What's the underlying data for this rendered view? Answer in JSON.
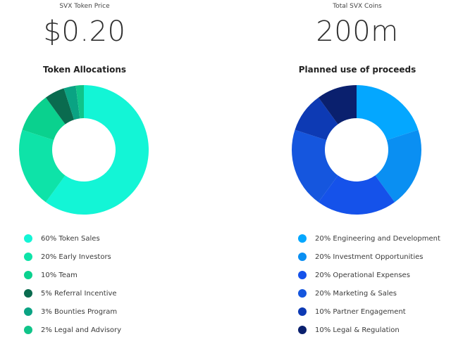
{
  "left": {
    "stat_label": "SVX Token Price",
    "stat_value": "$0.20",
    "chart_title": "Token Allocations"
  },
  "right": {
    "stat_label": "Total SVX Coins",
    "stat_value": "200m",
    "chart_title": "Planned use of proceeds"
  },
  "chart_data": [
    {
      "type": "pie",
      "title": "Token Allocations",
      "slices": [
        {
          "label": "60% Token Sales",
          "value": 60,
          "color": "#13f5d6"
        },
        {
          "label": "20% Early Investors",
          "value": 20,
          "color": "#0ee3a8"
        },
        {
          "label": "10% Team",
          "value": 10,
          "color": "#0ad18e"
        },
        {
          "label": "5% Referral Incentive",
          "value": 5,
          "color": "#0a6b4f"
        },
        {
          "label": "3% Bounties Program",
          "value": 3,
          "color": "#0aa383"
        },
        {
          "label": "2% Legal and Advisory",
          "value": 2,
          "color": "#10c489"
        }
      ]
    },
    {
      "type": "pie",
      "title": "Planned use of proceeds",
      "slices": [
        {
          "label": "20% Engineering and Development",
          "value": 20,
          "color": "#04a7ff"
        },
        {
          "label": "20% Investment Opportunities",
          "value": 20,
          "color": "#0a8ff2"
        },
        {
          "label": "20% Operational Expenses",
          "value": 20,
          "color": "#1552ea"
        },
        {
          "label": "20% Marketing & Sales",
          "value": 20,
          "color": "#1556de"
        },
        {
          "label": "10% Partner Engagement",
          "value": 10,
          "color": "#0d3ab4"
        },
        {
          "label": "10% Legal & Regulation",
          "value": 10,
          "color": "#0a206e"
        }
      ]
    }
  ]
}
